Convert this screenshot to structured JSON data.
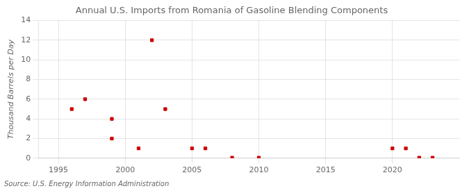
{
  "chart_data": {
    "type": "scatter",
    "title": "Annual U.S. Imports from Romania of Gasoline Blending Components",
    "ylabel": "Thousand Barrels per Day",
    "annotations": [
      "Source: U.S. Energy Information Administration"
    ],
    "x": [
      1996,
      1997,
      1999,
      1999,
      2001,
      2002,
      2003,
      2005,
      2006,
      2008,
      2010,
      2020,
      2021,
      2022,
      2023
    ],
    "values": [
      5,
      6,
      2,
      4,
      1,
      12,
      5,
      1,
      1,
      0.05,
      0.05,
      1,
      1,
      0.05,
      0.05
    ],
    "color": "#cc0000",
    "marker": "square",
    "xlim": [
      1993.5,
      2025
    ],
    "xticks": [
      1995,
      2000,
      2005,
      2010,
      2015,
      2020
    ],
    "ylim": [
      0,
      14
    ],
    "yticks": [
      0,
      2,
      4,
      6,
      8,
      10,
      12,
      14
    ],
    "grid": true
  }
}
